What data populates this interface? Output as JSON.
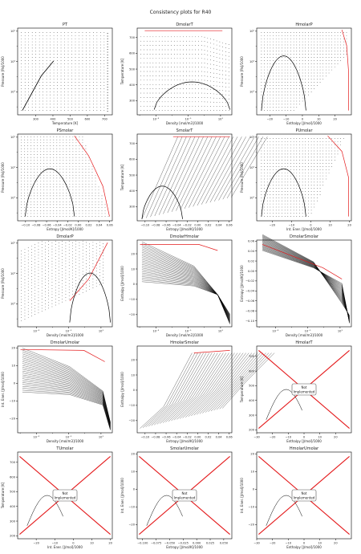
{
  "suptitle": "Consistency plots for R40",
  "colors": {
    "data": "#000000",
    "saturation": "#e41a1c",
    "frame": "#000000"
  },
  "not_implemented_label": [
    "Not",
    "Implemented"
  ],
  "chart_data": [
    {
      "type": "scatter",
      "title": "PT",
      "xlabel": "Temperature [K]",
      "ylabel": "Pressure [Pa]/1000",
      "xlim": [
        195,
        745
      ],
      "ylim": [
        0.3,
        160000.0
      ],
      "xscale": "linear",
      "yscale": "log",
      "xticks": [
        300,
        400,
        500,
        600,
        700
      ],
      "xtick_labels": [
        "300",
        "400",
        "500",
        "600",
        "700"
      ],
      "yticks": [
        10,
        1000,
        100000
      ],
      "ytick_labels": [
        "10¹",
        "10³",
        "10⁵"
      ],
      "minor_yticks": [
        1,
        100,
        10000
      ]
    },
    {
      "type": "scatter",
      "title": "DmolarT",
      "xlabel": "Density [mol/m3]/1000",
      "ylabel": "Temperature [K]",
      "xlim": [
        7e-05,
        50
      ],
      "ylim": [
        210,
        760
      ],
      "xscale": "log",
      "yscale": "linear",
      "xticks": [
        0.001,
        0.1,
        10
      ],
      "xtick_labels": [
        "10⁻³",
        "10⁻¹",
        "10¹"
      ],
      "minor_xticks": [
        0.0001,
        0.01,
        1
      ],
      "yticks": [
        300,
        400,
        500,
        600,
        700
      ],
      "ytick_labels": [
        "300",
        "400",
        "500",
        "600",
        "700"
      ]
    },
    {
      "type": "scatter",
      "title": "HmolarP",
      "xlabel": "Enthalpy [J/mol]/1000",
      "ylabel": "Pressure [Pa]/1000",
      "xlim": [
        -28,
        30
      ],
      "ylim": [
        0.3,
        160000.0
      ],
      "xscale": "linear",
      "yscale": "log",
      "xticks": [
        -20,
        -10,
        0,
        10,
        20
      ],
      "xtick_labels": [
        "−20",
        "−10",
        "0",
        "10",
        "20"
      ],
      "yticks": [
        10,
        1000,
        100000
      ],
      "ytick_labels": [
        "10¹",
        "10³",
        "10⁵"
      ],
      "minor_yticks": [
        1,
        100,
        10000
      ]
    },
    {
      "type": "scatter",
      "title": "PSmolar",
      "xlabel": "Entropy [J/mol/K]/1000",
      "ylabel": "Pressure [Pa]/1000",
      "xlim": [
        -0.115,
        0.065
      ],
      "ylim": [
        0.3,
        160000.0
      ],
      "xscale": "linear",
      "yscale": "log",
      "xticks": [
        -0.1,
        -0.08,
        -0.06,
        -0.04,
        -0.02,
        0.0,
        0.02,
        0.04,
        0.06
      ],
      "xtick_labels": [
        "−0.10",
        "−0.08",
        "−0.06",
        "−0.04",
        "−0.02",
        "0.00",
        "0.02",
        "0.04",
        "0.06"
      ],
      "yticks": [
        10,
        1000,
        100000
      ],
      "ytick_labels": [
        "10¹",
        "10³",
        "10⁵"
      ],
      "minor_yticks": [
        1,
        100,
        10000
      ]
    },
    {
      "type": "scatter",
      "title": "SmolarT",
      "xlabel": "Entropy [J/mol/K]/1000",
      "ylabel": "Temperature [K]",
      "xlim": [
        -0.115,
        0.065
      ],
      "ylim": [
        210,
        760
      ],
      "xscale": "linear",
      "yscale": "linear",
      "xticks": [
        -0.1,
        -0.08,
        -0.06,
        -0.04,
        -0.02,
        0.0,
        0.02,
        0.04,
        0.06
      ],
      "xtick_labels": [
        "−0.10",
        "−0.08",
        "−0.06",
        "−0.04",
        "−0.02",
        "0.00",
        "0.02",
        "0.04",
        "0.06"
      ],
      "yticks": [
        300,
        400,
        500,
        600,
        700
      ],
      "ytick_labels": [
        "300",
        "400",
        "500",
        "600",
        "700"
      ]
    },
    {
      "type": "scatter",
      "title": "PUmolar",
      "xlabel": "Int. Ener. [J/mol]/1000",
      "ylabel": "Pressure [Pa]/1000",
      "xlim": [
        -28,
        21
      ],
      "ylim": [
        0.3,
        160000.0
      ],
      "xscale": "linear",
      "yscale": "log",
      "xticks": [
        -20,
        -10,
        0,
        10,
        20
      ],
      "xtick_labels": [
        "−20",
        "−10",
        "0",
        "10",
        "20"
      ],
      "yticks": [
        10,
        1000,
        100000
      ],
      "ytick_labels": [
        "10¹",
        "10³",
        "10⁵"
      ],
      "minor_yticks": [
        1,
        100,
        10000
      ]
    },
    {
      "type": "scatter",
      "title": "DmolarP",
      "xlabel": "Density [mol/m3]/1000",
      "ylabel": "Pressure [Pa]/1000",
      "xlim": [
        7e-05,
        50
      ],
      "ylim": [
        0.3,
        160000.0
      ],
      "xscale": "log",
      "yscale": "log",
      "xticks": [
        0.001,
        0.1,
        10
      ],
      "xtick_labels": [
        "10⁻³",
        "10⁻¹",
        "10¹"
      ],
      "minor_xticks": [
        0.0001,
        0.01,
        1
      ],
      "yticks": [
        10,
        1000,
        100000
      ],
      "ytick_labels": [
        "10¹",
        "10³",
        "10⁵"
      ],
      "minor_yticks": [
        1,
        100,
        10000
      ]
    },
    {
      "type": "scatter",
      "title": "DmolarHmolar",
      "xlabel": "Density [mol/m3]/1000",
      "ylabel": "Enthalpy [J/mol]/1000",
      "xlim": [
        7e-05,
        50
      ],
      "ylim": [
        -28,
        29
      ],
      "xscale": "log",
      "yscale": "linear",
      "xticks": [
        0.001,
        0.1,
        10
      ],
      "xtick_labels": [
        "10⁻³",
        "10⁻¹",
        "10¹"
      ],
      "minor_xticks": [
        0.0001,
        0.01,
        1
      ],
      "yticks": [
        -20,
        -10,
        0,
        10,
        20
      ],
      "ytick_labels": [
        "−20",
        "−10",
        "0",
        "10",
        "20"
      ]
    },
    {
      "type": "scatter",
      "title": "DmolarSmolar",
      "xlabel": "Density [mol/m3]/1000",
      "ylabel": "Entropy [J/mol/K]/1000",
      "xlim": [
        7e-05,
        50
      ],
      "ylim": [
        -0.112,
        0.062
      ],
      "xscale": "log",
      "yscale": "linear",
      "xticks": [
        0.001,
        0.1,
        10
      ],
      "xtick_labels": [
        "10⁻³",
        "10⁻¹",
        "10¹"
      ],
      "minor_xticks": [
        0.0001,
        0.01,
        1
      ],
      "yticks": [
        -0.1,
        -0.08,
        -0.06,
        -0.04,
        -0.02,
        0.0,
        0.02,
        0.04,
        0.06
      ],
      "ytick_labels": [
        "−0.10",
        "−0.08",
        "−0.06",
        "−0.04",
        "−0.02",
        "0.00",
        "0.02",
        "0.04",
        "0.06"
      ]
    },
    {
      "type": "scatter",
      "title": "DmolarUmolar",
      "xlabel": "Density [mol/m3]/1000",
      "ylabel": "Int. Ener. [J/mol]/1000",
      "xlim": [
        7e-05,
        50
      ],
      "ylim": [
        -28,
        21
      ],
      "xscale": "log",
      "yscale": "linear",
      "xticks": [
        0.001,
        0.1,
        10
      ],
      "xtick_labels": [
        "10⁻³",
        "10⁻¹",
        "10¹"
      ],
      "minor_xticks": [
        0.0001,
        0.01,
        1
      ],
      "yticks": [
        -20,
        -10,
        0,
        10,
        20
      ],
      "ytick_labels": [
        "−20",
        "−10",
        "0",
        "10",
        "20"
      ]
    },
    {
      "type": "scatter",
      "title": "HmolarSmolar",
      "xlabel": "Entropy [J/mol/K]/1000",
      "ylabel": "Enthalpy [J/mol]/1000",
      "xlim": [
        -0.115,
        0.065
      ],
      "ylim": [
        -28,
        29
      ],
      "xscale": "linear",
      "yscale": "linear",
      "xticks": [
        -0.1,
        -0.08,
        -0.06,
        -0.04,
        -0.02,
        0.0,
        0.02,
        0.04,
        0.06
      ],
      "xtick_labels": [
        "−0.10",
        "−0.08",
        "−0.06",
        "−0.04",
        "−0.02",
        "0.00",
        "0.02",
        "0.04",
        "0.06"
      ],
      "yticks": [
        -20,
        -10,
        0,
        10,
        20
      ],
      "ytick_labels": [
        "−20",
        "−10",
        "0",
        "10",
        "20"
      ]
    },
    {
      "type": "scatter",
      "title": "HmolarT",
      "xlabel": "Enthalpy [J/mol]/1000",
      "ylabel": "Temperature [K]",
      "xlim": [
        -30,
        30
      ],
      "ylim": [
        180,
        770
      ],
      "xscale": "linear",
      "yscale": "linear",
      "xticks": [
        -30,
        -20,
        -10,
        0,
        10,
        20
      ],
      "xtick_labels": [
        "−30",
        "−20",
        "−10",
        "0",
        "10",
        "20"
      ],
      "yticks": [
        200,
        300,
        400,
        500,
        600,
        700
      ],
      "ytick_labels": [
        "200",
        "300",
        "400",
        "500",
        "600",
        "700"
      ],
      "not_implemented": true
    },
    {
      "type": "scatter",
      "title": "TUmolar",
      "xlabel": "Int. Ener. [J/mol]/1000",
      "ylabel": "Temperature [K]",
      "xlim": [
        -30,
        21
      ],
      "ylim": [
        180,
        770
      ],
      "xscale": "linear",
      "yscale": "linear",
      "xticks": [
        -20,
        -10,
        0,
        10,
        20
      ],
      "xtick_labels": [
        "−20",
        "−10",
        "0",
        "10",
        "20"
      ],
      "yticks": [
        200,
        300,
        400,
        500,
        600,
        700
      ],
      "ytick_labels": [
        "200",
        "300",
        "400",
        "500",
        "600",
        "700"
      ],
      "not_implemented": true
    },
    {
      "type": "scatter",
      "title": "SmolarUmolar",
      "xlabel": "Entropy [J/mol/K]/1000",
      "ylabel": "Int. Ener. [J/mol]/1000",
      "xlim": [
        -0.11,
        0.065
      ],
      "ylim": [
        -28,
        21
      ],
      "xscale": "linear",
      "yscale": "linear",
      "xticks": [
        -0.1,
        -0.075,
        -0.05,
        -0.025,
        0.0,
        0.025,
        0.05
      ],
      "xtick_labels": [
        "−0.100",
        "−0.075",
        "−0.050",
        "−0.025",
        "0.000",
        "0.025",
        "0.050"
      ],
      "yticks": [
        -20,
        -10,
        0,
        10,
        20
      ],
      "ytick_labels": [
        "−20",
        "−10",
        "0",
        "10",
        "20"
      ],
      "not_implemented": true
    },
    {
      "type": "scatter",
      "title": "HmolarUmolar",
      "xlabel": "Enthalpy [J/mol]/1000",
      "ylabel": "Int. Ener. [J/mol]/1000",
      "xlim": [
        -30,
        30
      ],
      "ylim": [
        -28,
        21
      ],
      "xscale": "linear",
      "yscale": "linear",
      "xticks": [
        -30,
        -20,
        -10,
        0,
        10,
        20
      ],
      "xtick_labels": [
        "−30",
        "−20",
        "−10",
        "0",
        "10",
        "20"
      ],
      "yticks": [
        -20,
        -10,
        0,
        10,
        20
      ],
      "ytick_labels": [
        "−20",
        "−10",
        "0",
        "10",
        "20"
      ],
      "not_implemented": true
    }
  ]
}
